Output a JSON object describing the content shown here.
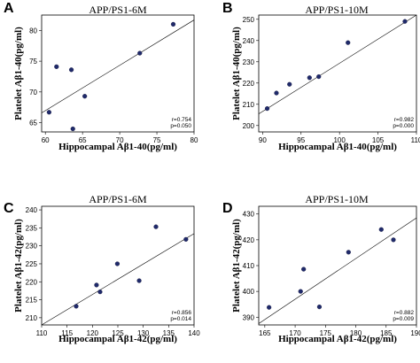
{
  "colors": {
    "point": "#1f2a6b",
    "line": "#000000"
  },
  "chart_data": [
    {
      "type": "scatter",
      "panel_letter": "A",
      "title": "APP/PS1-6M",
      "xlabel": "Hippocampal Aβ1-40(pg/ml)",
      "ylabel": "Platelet Aβ1-40(pg/ml)",
      "xlim": [
        59.5,
        80
      ],
      "ylim": [
        63.5,
        82.5
      ],
      "xticks": [
        60,
        65,
        70,
        75,
        80
      ],
      "yticks": [
        65,
        70,
        75,
        80
      ],
      "x": [
        60.5,
        61.5,
        63.5,
        63.7,
        65.3,
        72.7,
        77.2
      ],
      "y": [
        66.7,
        74.1,
        73.6,
        64.0,
        69.3,
        76.3,
        81.0
      ],
      "fit_line": {
        "x": [
          59.5,
          80
        ],
        "y": [
          66.6,
          81.7
        ]
      },
      "stats": [
        "r=0.754",
        "p=0.050"
      ]
    },
    {
      "type": "scatter",
      "panel_letter": "B",
      "title": "APP/PS1-10M",
      "xlabel": "Hippocampal Aβ1-40(pg/ml)",
      "ylabel": "Platelet Aβ1-40(pg/ml)",
      "xlim": [
        89.5,
        110
      ],
      "ylim": [
        197,
        252
      ],
      "xticks": [
        90,
        95,
        100,
        105,
        110
      ],
      "yticks": [
        200,
        210,
        220,
        230,
        240,
        250
      ],
      "x": [
        90.6,
        91.8,
        93.5,
        96.1,
        97.3,
        101.1,
        108.5
      ],
      "y": [
        208.0,
        215.3,
        219.4,
        222.5,
        223.0,
        239.0,
        249.0
      ],
      "fit_line": {
        "x": [
          89.5,
          110
        ],
        "y": [
          205.5,
          252
        ]
      },
      "stats": [
        "r=0.982",
        "p=0.000"
      ]
    },
    {
      "type": "scatter",
      "panel_letter": "C",
      "title": "APP/PS1-6M",
      "xlabel": "Hippocampal Aβ1-42(pg/ml)",
      "ylabel": "Platelet Aβ1-42(pg/ml)",
      "xlim": [
        110,
        140
      ],
      "ylim": [
        208,
        241
      ],
      "xticks": [
        110,
        115,
        120,
        125,
        130,
        135,
        140
      ],
      "yticks": [
        210,
        215,
        220,
        225,
        230,
        235,
        240
      ],
      "x": [
        116.8,
        120.8,
        121.5,
        124.9,
        129.2,
        132.5,
        138.4
      ],
      "y": [
        213.2,
        219.1,
        217.2,
        225.0,
        220.3,
        235.3,
        231.8
      ],
      "fit_line": {
        "x": [
          110,
          140
        ],
        "y": [
          206.5,
          233.4
        ]
      },
      "stats": [
        "r=0.856",
        "p=0.014"
      ]
    },
    {
      "type": "scatter",
      "panel_letter": "D",
      "title": "APP/PS1-10M",
      "xlabel": "Hippocampal Aβ1-42(pg/ml)",
      "ylabel": "Platelet Aβ1-42(pg/ml)",
      "xlim": [
        164,
        190
      ],
      "ylim": [
        387,
        433
      ],
      "xticks": [
        165,
        170,
        175,
        180,
        185,
        190
      ],
      "yticks": [
        390,
        400,
        410,
        420,
        430
      ],
      "x": [
        165.7,
        170.9,
        171.4,
        174.0,
        178.8,
        184.2,
        186.2
      ],
      "y": [
        393.8,
        400.0,
        408.6,
        394.0,
        415.2,
        424.0,
        420.0
      ],
      "fit_line": {
        "x": [
          164,
          190
        ],
        "y": [
          387.5,
          428.5
        ]
      },
      "stats": [
        "r=0.882",
        "p=0.009"
      ]
    }
  ]
}
